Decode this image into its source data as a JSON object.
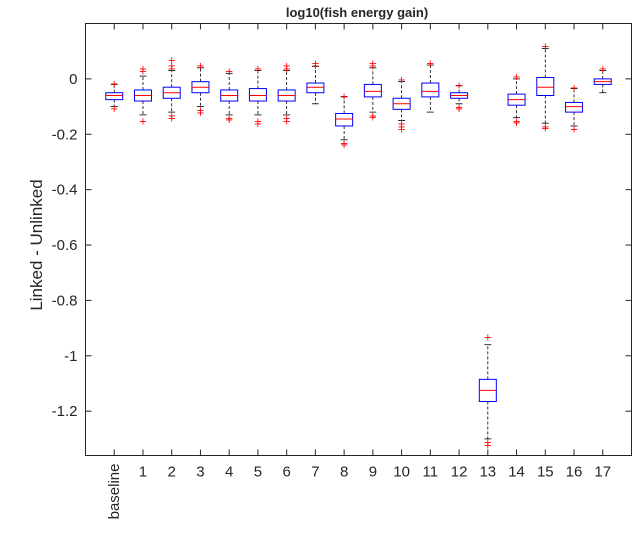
{
  "chart_data": {
    "type": "boxplot",
    "title": "log10(fish energy gain)",
    "xlabel": "",
    "ylabel": "Linked - Unlinked",
    "ylim": [
      -1.36,
      0.2
    ],
    "yticks": [
      0,
      -0.2,
      -0.4,
      -0.6,
      -0.8,
      -1,
      -1.2
    ],
    "ytick_labels": [
      "0",
      "-0.2",
      "-0.4",
      "-0.6",
      "-0.8",
      "-1",
      "-1.2"
    ],
    "categories": [
      "baseline",
      "1",
      "2",
      "3",
      "4",
      "5",
      "6",
      "7",
      "8",
      "9",
      "10",
      "11",
      "12",
      "13",
      "14",
      "15",
      "16",
      "17"
    ],
    "grid": false,
    "colors": {
      "box": "#0000ff",
      "median": "#ff0000",
      "whisker": "#000000",
      "outlier": "#ff0000",
      "axes": "#262626"
    },
    "boxes": [
      {
        "category": "baseline",
        "whisker_low": -0.1,
        "q1": -0.075,
        "median": -0.06,
        "q3": -0.05,
        "whisker_high": -0.02,
        "outliers": [
          -0.015,
          -0.105
        ]
      },
      {
        "category": "1",
        "whisker_low": -0.13,
        "q1": -0.08,
        "median": -0.06,
        "q3": -0.04,
        "whisker_high": 0.01,
        "outliers": [
          0.03,
          0.04,
          -0.15
        ]
      },
      {
        "category": "2",
        "whisker_low": -0.12,
        "q1": -0.07,
        "median": -0.05,
        "q3": -0.03,
        "whisker_high": 0.03,
        "outliers": [
          0.04,
          0.05,
          0.07,
          -0.13,
          -0.14
        ]
      },
      {
        "category": "3",
        "whisker_low": -0.1,
        "q1": -0.05,
        "median": -0.03,
        "q3": -0.01,
        "whisker_high": 0.04,
        "outliers": [
          0.05,
          -0.11,
          -0.12
        ]
      },
      {
        "category": "4",
        "whisker_low": -0.13,
        "q1": -0.08,
        "median": -0.06,
        "q3": -0.04,
        "whisker_high": 0.02,
        "outliers": [
          0.03,
          -0.14,
          -0.145
        ]
      },
      {
        "category": "5",
        "whisker_low": -0.13,
        "q1": -0.08,
        "median": -0.06,
        "q3": -0.035,
        "whisker_high": 0.03,
        "outliers": [
          0.04,
          -0.15,
          -0.16
        ]
      },
      {
        "category": "6",
        "whisker_low": -0.13,
        "q1": -0.08,
        "median": -0.06,
        "q3": -0.04,
        "whisker_high": 0.03,
        "outliers": [
          0.04,
          0.05,
          -0.14,
          -0.15
        ]
      },
      {
        "category": "7",
        "whisker_low": -0.09,
        "q1": -0.05,
        "median": -0.03,
        "q3": -0.015,
        "whisker_high": 0.045,
        "outliers": [
          0.05,
          0.06
        ]
      },
      {
        "category": "8",
        "whisker_low": -0.22,
        "q1": -0.17,
        "median": -0.145,
        "q3": -0.125,
        "whisker_high": -0.065,
        "outliers": [
          -0.06,
          -0.23,
          -0.235
        ]
      },
      {
        "category": "9",
        "whisker_low": -0.12,
        "q1": -0.065,
        "median": -0.045,
        "q3": -0.02,
        "whisker_high": 0.04,
        "outliers": [
          0.05,
          0.06,
          -0.13,
          -0.135
        ]
      },
      {
        "category": "10",
        "whisker_low": -0.15,
        "q1": -0.11,
        "median": -0.09,
        "q3": -0.07,
        "whisker_high": -0.01,
        "outliers": [
          0.0,
          -0.16,
          -0.17,
          -0.18
        ]
      },
      {
        "category": "11",
        "whisker_low": -0.12,
        "q1": -0.065,
        "median": -0.045,
        "q3": -0.015,
        "whisker_high": 0.05,
        "outliers": [
          0.06
        ]
      },
      {
        "category": "12",
        "whisker_low": -0.09,
        "q1": -0.07,
        "median": -0.06,
        "q3": -0.05,
        "whisker_high": -0.025,
        "outliers": [
          -0.02,
          -0.1,
          -0.105
        ]
      },
      {
        "category": "13",
        "whisker_low": -1.3,
        "q1": -1.165,
        "median": -1.125,
        "q3": -1.085,
        "whisker_high": -0.96,
        "outliers": [
          -0.93,
          -1.31,
          -1.32
        ]
      },
      {
        "category": "14",
        "whisker_low": -0.14,
        "q1": -0.095,
        "median": -0.075,
        "q3": -0.055,
        "whisker_high": 0.0,
        "outliers": [
          0.01,
          -0.15,
          -0.155
        ]
      },
      {
        "category": "15",
        "whisker_low": -0.16,
        "q1": -0.06,
        "median": -0.03,
        "q3": 0.005,
        "whisker_high": 0.11,
        "outliers": [
          0.12,
          -0.17,
          -0.175
        ]
      },
      {
        "category": "16",
        "whisker_low": -0.17,
        "q1": -0.12,
        "median": -0.1,
        "q3": -0.085,
        "whisker_high": -0.035,
        "outliers": [
          -0.03,
          -0.18
        ]
      },
      {
        "category": "17",
        "whisker_low": -0.05,
        "q1": -0.02,
        "median": -0.01,
        "q3": 0.0,
        "whisker_high": 0.03,
        "outliers": [
          0.04
        ]
      }
    ]
  }
}
